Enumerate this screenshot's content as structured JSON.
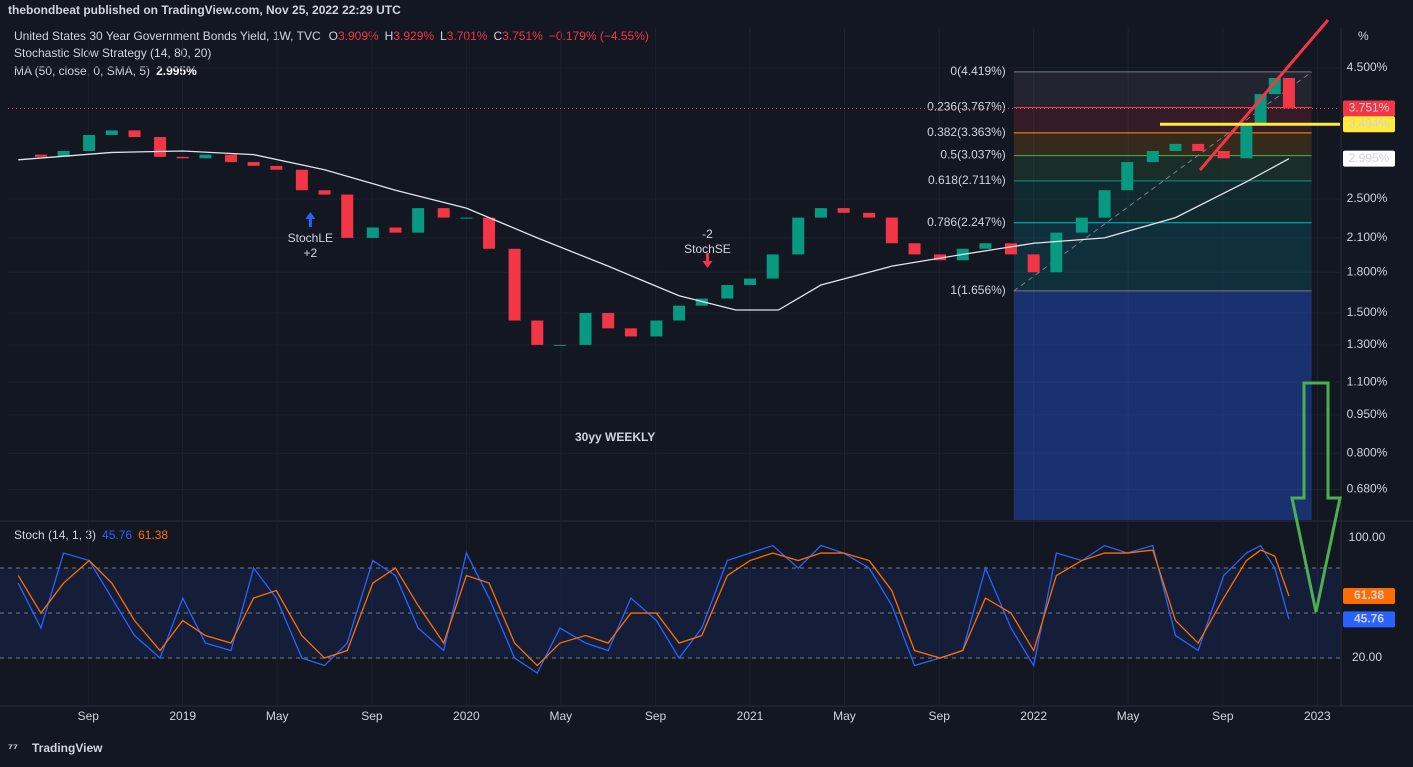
{
  "header": {
    "publisher": "thebondbeat published on TradingView.com, Nov 25, 2022 22:29 UTC",
    "symbol": "United States 30 Year Government Bonds Yield, 1W, TVC",
    "ohlc": [
      {
        "label": "O",
        "value": "3.909%"
      },
      {
        "label": "H",
        "value": "3.929%"
      },
      {
        "label": "L",
        "value": "3.701%"
      },
      {
        "label": "C",
        "value": "3.751%"
      }
    ],
    "change": "−0.179% (−4.55%)",
    "strategy": "Stochastic Slow Strategy (14, 80, 20)",
    "ma": "MA (50, close, 0, SMA, 5)",
    "ma_value": "2.995%",
    "stoch": "Stoch (14, 1, 3)",
    "overlay_text": "30yy WEEKLY",
    "axis_unit": "%",
    "footer": "TradingView"
  },
  "chart_data": [
    {
      "type": "candlestick",
      "log_scale": true,
      "grid": true,
      "xlim": [
        2018.384,
        2023.08
      ],
      "ylim": [
        0.593,
        5.38
      ],
      "yticks": [
        {
          "value": 4.5,
          "label": "4.500%"
        },
        {
          "value": 2.5,
          "label": "2.500%"
        },
        {
          "value": 2.1,
          "label": "2.100%"
        },
        {
          "value": 1.8,
          "label": "1.800%"
        },
        {
          "value": 1.5,
          "label": "1.500%"
        },
        {
          "value": 1.3,
          "label": "1.300%"
        },
        {
          "value": 1.1,
          "label": "1.100%"
        },
        {
          "value": 0.95,
          "label": "0.950%"
        },
        {
          "value": 0.8,
          "label": "0.800%"
        },
        {
          "value": 0.68,
          "label": "0.680%"
        }
      ],
      "x": [
        2018.42,
        2018.5,
        2018.58,
        2018.67,
        2018.75,
        2018.83,
        2018.92,
        2019.0,
        2019.08,
        2019.17,
        2019.25,
        2019.33,
        2019.42,
        2019.5,
        2019.58,
        2019.67,
        2019.75,
        2019.83,
        2019.92,
        2020.0,
        2020.08,
        2020.17,
        2020.25,
        2020.33,
        2020.42,
        2020.5,
        2020.58,
        2020.67,
        2020.75,
        2020.83,
        2020.92,
        2021.0,
        2021.08,
        2021.17,
        2021.25,
        2021.33,
        2021.42,
        2021.5,
        2021.58,
        2021.67,
        2021.75,
        2021.83,
        2021.92,
        2022.0,
        2022.08,
        2022.17,
        2022.25,
        2022.33,
        2022.42,
        2022.5,
        2022.58,
        2022.67,
        2022.75,
        2022.8,
        2022.85,
        2022.9
      ],
      "series": [
        {
          "color": "#089981",
          "down_color": "#f23645",
          "values": [
            3.05,
            3.02,
            3.1,
            3.33,
            3.4,
            3.3,
            3.02,
            3.0,
            3.05,
            2.95,
            2.9,
            2.85,
            2.6,
            2.55,
            2.1,
            2.2,
            2.15,
            2.4,
            2.3,
            2.3,
            2.0,
            1.45,
            1.3,
            1.3,
            1.5,
            1.4,
            1.35,
            1.45,
            1.55,
            1.6,
            1.7,
            1.75,
            1.95,
            2.3,
            2.4,
            2.35,
            2.3,
            2.05,
            1.95,
            1.9,
            2.0,
            2.05,
            1.95,
            1.8,
            2.15,
            2.3,
            2.6,
            2.95,
            3.1,
            3.2,
            3.1,
            3.0,
            3.5,
            4.0,
            4.3,
            3.751
          ]
        },
        {
          "type": "line",
          "color": "#e0e3eb",
          "x": [
            2018.42,
            2018.75,
            2019.0,
            2019.25,
            2019.5,
            2019.75,
            2020.0,
            2020.25,
            2020.5,
            2020.75,
            2020.95,
            2021.1,
            2021.25,
            2021.5,
            2021.75,
            2022.0,
            2022.25,
            2022.5,
            2022.75,
            2022.9
          ],
          "values": [
            2.98,
            3.08,
            3.1,
            3.05,
            2.85,
            2.6,
            2.4,
            2.1,
            1.85,
            1.62,
            1.52,
            1.52,
            1.7,
            1.85,
            1.95,
            2.05,
            2.1,
            2.3,
            2.7,
            2.995
          ]
        }
      ],
      "fib": {
        "from": 2021.93,
        "to": 2022.98,
        "levels": [
          {
            "value": 4.419,
            "label": "0(4.419%)",
            "color": "#787b86"
          },
          {
            "value": 3.767,
            "label": "0.236(3.767%)",
            "color": "#f23645"
          },
          {
            "value": 3.363,
            "label": "0.382(3.363%)",
            "color": "#ff9800"
          },
          {
            "value": 3.037,
            "label": "0.5(3.037%)",
            "color": "#4caf50"
          },
          {
            "value": 2.711,
            "label": "0.618(2.711%)",
            "color": "#089981"
          },
          {
            "value": 2.247,
            "label": "0.786(2.247%)",
            "color": "#00bcd4"
          },
          {
            "value": 1.656,
            "label": "1(1.656%)",
            "color": "#787b86"
          }
        ]
      },
      "price_tags": [
        {
          "value": 3.751,
          "label": "3.751%",
          "color": "#f23645"
        },
        {
          "value": 3.494,
          "label": "3.494%",
          "color": "#ffeb3b"
        },
        {
          "value": 2.995,
          "label": "2.995%",
          "color": "#ffffff"
        }
      ],
      "annotations": [
        {
          "x": 2019.45,
          "text": [
            "StochLE",
            "+2"
          ],
          "color": "#2962ff"
        },
        {
          "x": 2020.85,
          "text": [
            "-2",
            "StochSE"
          ],
          "color": "#f23645"
        }
      ]
    },
    {
      "type": "line",
      "grid": true,
      "xlim": [
        2018.384,
        2023.08
      ],
      "ylim": [
        -11.3,
        110.7
      ],
      "xticks": [
        {
          "value": 2018.667,
          "label": "Sep"
        },
        2019,
        {
          "value": 2019.333,
          "label": "May"
        },
        {
          "value": 2019.667,
          "label": "Sep"
        },
        2020,
        {
          "value": 2020.333,
          "label": "May"
        },
        {
          "value": 2020.667,
          "label": "Sep"
        },
        2021,
        {
          "value": 2021.333,
          "label": "May"
        },
        {
          "value": 2021.667,
          "label": "Sep"
        },
        2022,
        {
          "value": 2022.333,
          "label": "May"
        },
        {
          "value": 2022.667,
          "label": "Sep"
        },
        2023
      ],
      "yticks": [
        {
          "value": 100,
          "label": "100.00"
        },
        {
          "value": 20,
          "label": "20.00"
        }
      ],
      "levels": [
        80,
        50,
        20
      ],
      "x": [
        2018.42,
        2018.5,
        2018.58,
        2018.67,
        2018.75,
        2018.83,
        2018.92,
        2019.0,
        2019.08,
        2019.17,
        2019.25,
        2019.33,
        2019.42,
        2019.5,
        2019.58,
        2019.67,
        2019.75,
        2019.83,
        2019.92,
        2020.0,
        2020.08,
        2020.17,
        2020.25,
        2020.33,
        2020.42,
        2020.5,
        2020.58,
        2020.67,
        2020.75,
        2020.83,
        2020.92,
        2021.0,
        2021.08,
        2021.17,
        2021.25,
        2021.33,
        2021.42,
        2021.5,
        2021.58,
        2021.67,
        2021.75,
        2021.83,
        2021.92,
        2022.0,
        2022.08,
        2022.17,
        2022.25,
        2022.33,
        2022.42,
        2022.5,
        2022.58,
        2022.67,
        2022.75,
        2022.8,
        2022.85,
        2022.9
      ],
      "series": [
        {
          "color": "#2962ff",
          "values": [
            70,
            40,
            90,
            85,
            60,
            35,
            20,
            60,
            30,
            25,
            80,
            60,
            20,
            15,
            30,
            85,
            75,
            40,
            25,
            90,
            60,
            20,
            10,
            40,
            30,
            25,
            60,
            45,
            20,
            40,
            85,
            90,
            95,
            80,
            95,
            90,
            80,
            55,
            15,
            20,
            25,
            80,
            40,
            15,
            90,
            85,
            95,
            90,
            95,
            35,
            25,
            75,
            90,
            95,
            80,
            45.76
          ]
        },
        {
          "color": "#ff6d00",
          "values": [
            75,
            50,
            70,
            85,
            70,
            45,
            25,
            45,
            35,
            30,
            60,
            65,
            35,
            20,
            25,
            70,
            80,
            55,
            30,
            75,
            70,
            30,
            15,
            30,
            35,
            30,
            50,
            50,
            30,
            35,
            75,
            85,
            90,
            85,
            90,
            90,
            85,
            65,
            25,
            20,
            25,
            60,
            50,
            25,
            75,
            85,
            90,
            90,
            92,
            45,
            30,
            60,
            85,
            92,
            88,
            61.38
          ]
        }
      ]
    }
  ]
}
